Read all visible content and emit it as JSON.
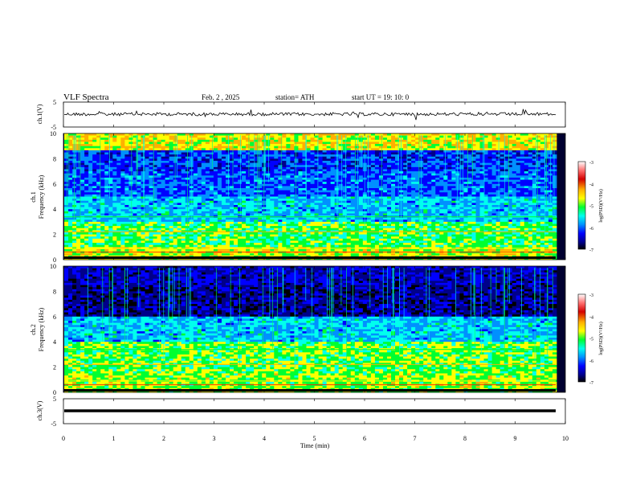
{
  "header": {
    "title": "VLF  Spectra",
    "date": "Feb. 2  , 2025",
    "station": "station= ATH",
    "start": "start  UT  =   19: 10: 0"
  },
  "colors": {
    "colormap": [
      "#ffffff",
      "#ff6f6f",
      "#d40000",
      "#ffb000",
      "#ffff00",
      "#00ff30",
      "#00ffee",
      "#0090ff",
      "#0000ff",
      "#00008a",
      "#000000"
    ]
  },
  "chart_data": [
    {
      "type": "line",
      "name": "ch1-waveform",
      "ylabel": "ch.1(V)",
      "ylim": [
        -5,
        5
      ],
      "y_ticks": [
        "5",
        "-5"
      ],
      "xlim": [
        0,
        10
      ]
    },
    {
      "type": "heatmap",
      "name": "ch1-spectrogram",
      "ylabel": "ch.1\nFrequency (kHz)",
      "ylabel_top": "ch.1",
      "ylabel_bottom": "Frequency (kHz)",
      "ylim": [
        0,
        10
      ],
      "y_ticks": [
        "0",
        "2",
        "4",
        "6",
        "8",
        "10"
      ],
      "xlim": [
        0,
        10
      ],
      "colorbar": {
        "label": "log(PSD)(V²/Hz)",
        "ticks": [
          "-3",
          "-4",
          "-5",
          "-6",
          "-7"
        ],
        "range": [
          -7,
          -3
        ]
      }
    },
    {
      "type": "heatmap",
      "name": "ch2-spectrogram",
      "ylabel_top": "ch.2",
      "ylabel_bottom": "Frequency (kHz)",
      "ylim": [
        0,
        10
      ],
      "y_ticks": [
        "0",
        "2",
        "4",
        "6",
        "8",
        "10"
      ],
      "xlim": [
        0,
        10
      ],
      "colorbar": {
        "label": "log(PSD)(V²/Hz)",
        "ticks": [
          "-3",
          "-4",
          "-5",
          "-6",
          "-7"
        ],
        "range": [
          -7,
          -3
        ]
      }
    },
    {
      "type": "line",
      "name": "ch3-waveform",
      "ylabel": "ch.3(V)",
      "ylim": [
        -5,
        5
      ],
      "y_ticks": [
        "5",
        "-5"
      ],
      "xlim": [
        0,
        10
      ]
    }
  ],
  "xaxis": {
    "label": "Time  (min)",
    "ticks": [
      "0",
      "1",
      "2",
      "3",
      "4",
      "5",
      "6",
      "7",
      "8",
      "9",
      "10"
    ]
  }
}
